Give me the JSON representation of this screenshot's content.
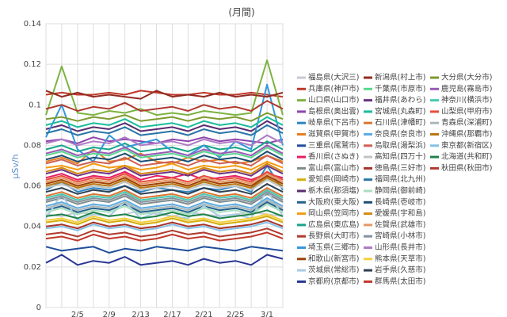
{
  "chart_data": {
    "type": "line",
    "title": "(月間)",
    "y_label": "μSv/h",
    "categories": [
      null,
      null,
      "2/5",
      null,
      "2/9",
      null,
      "2/13",
      null,
      "2/17",
      null,
      "2/21",
      null,
      "2/25",
      null,
      "3/1",
      null
    ],
    "ylim": [
      0,
      0.14
    ],
    "yticks": [
      0,
      0.02,
      0.04,
      0.06,
      0.08,
      0.1,
      0.12,
      0.14
    ],
    "grid": true,
    "series": [
      {
        "name": "福島県(大沢三)",
        "color": "#c8c8d8",
        "values": [
          0.046,
          0.045,
          0.047,
          0.046,
          0.045,
          0.046,
          0.048,
          0.046,
          0.045,
          0.047,
          0.046,
          0.045,
          0.046,
          0.047,
          0.046,
          0.045
        ]
      },
      {
        "name": "兵庫県(神戸市)",
        "color": "#c0392b",
        "values": [
          0.105,
          0.106,
          0.105,
          0.105,
          0.106,
          0.105,
          0.107,
          0.106,
          0.105,
          0.105,
          0.106,
          0.105,
          0.105,
          0.106,
          0.105,
          0.104
        ]
      },
      {
        "name": "山口県(山口市)",
        "color": "#7cb342",
        "values": [
          0.095,
          0.119,
          0.096,
          0.095,
          0.097,
          0.096,
          0.098,
          0.095,
          0.096,
          0.095,
          0.097,
          0.096,
          0.095,
          0.096,
          0.122,
          0.095
        ]
      },
      {
        "name": "島根県(奥出雲)",
        "color": "#8e44ad",
        "values": [
          0.082,
          0.083,
          0.081,
          0.084,
          0.082,
          0.083,
          0.082,
          0.081,
          0.083,
          0.082,
          0.084,
          0.082,
          0.083,
          0.082,
          0.081,
          0.083
        ]
      },
      {
        "name": "岐阜県(下呂市)",
        "color": "#2e86c1",
        "values": [
          0.058,
          0.062,
          0.057,
          0.059,
          0.058,
          0.06,
          0.057,
          0.059,
          0.058,
          0.057,
          0.059,
          0.058,
          0.06,
          0.057,
          0.07,
          0.058
        ]
      },
      {
        "name": "滋賀県(甲賀市)",
        "color": "#e67e22",
        "values": [
          0.072,
          0.074,
          0.071,
          0.078,
          0.072,
          0.073,
          0.076,
          0.072,
          0.071,
          0.074,
          0.072,
          0.073,
          0.071,
          0.072,
          0.075,
          0.072
        ]
      },
      {
        "name": "三重県(尾鷲市)",
        "color": "#1f4e9c",
        "values": [
          0.03,
          0.028,
          0.029,
          0.03,
          0.027,
          0.029,
          0.028,
          0.03,
          0.029,
          0.028,
          0.03,
          0.029,
          0.028,
          0.03,
          0.029,
          0.028
        ]
      },
      {
        "name": "香川県(さぬき)",
        "color": "#e91e63",
        "values": [
          0.064,
          0.066,
          0.063,
          0.065,
          0.064,
          0.067,
          0.063,
          0.065,
          0.064,
          0.066,
          0.063,
          0.064,
          0.065,
          0.063,
          0.066,
          0.064
        ]
      },
      {
        "name": "富山県(富山市)",
        "color": "#7f8c8d",
        "values": [
          0.052,
          0.054,
          0.051,
          0.053,
          0.052,
          0.055,
          0.051,
          0.052,
          0.053,
          0.051,
          0.054,
          0.052,
          0.053,
          0.051,
          0.056,
          0.052
        ]
      },
      {
        "name": "愛知県(岡崎市)",
        "color": "#d4ac0d",
        "values": [
          0.042,
          0.043,
          0.041,
          0.044,
          0.042,
          0.043,
          0.041,
          0.042,
          0.044,
          0.042,
          0.043,
          0.041,
          0.042,
          0.043,
          0.045,
          0.042
        ]
      },
      {
        "name": "栃木県(那須塩)",
        "color": "#5b2c6f",
        "values": [
          0.088,
          0.09,
          0.087,
          0.089,
          0.088,
          0.091,
          0.087,
          0.088,
          0.089,
          0.087,
          0.09,
          0.088,
          0.089,
          0.087,
          0.092,
          0.088
        ]
      },
      {
        "name": "大阪府(東大阪)",
        "color": "#21618c",
        "values": [
          0.048,
          0.05,
          0.047,
          0.049,
          0.048,
          0.051,
          0.047,
          0.048,
          0.049,
          0.047,
          0.05,
          0.048,
          0.049,
          0.047,
          0.052,
          0.048
        ]
      },
      {
        "name": "岡山県(笠岡市)",
        "color": "#f39c12",
        "values": [
          0.069,
          0.07,
          0.068,
          0.071,
          0.069,
          0.07,
          0.068,
          0.069,
          0.071,
          0.068,
          0.07,
          0.069,
          0.07,
          0.068,
          0.072,
          0.069
        ]
      },
      {
        "name": "広島県(東広島)",
        "color": "#17a589",
        "values": [
          0.078,
          0.08,
          0.077,
          0.079,
          0.078,
          0.081,
          0.077,
          0.078,
          0.079,
          0.077,
          0.08,
          0.078,
          0.079,
          0.077,
          0.082,
          0.078
        ]
      },
      {
        "name": "長野県(大町市)",
        "color": "#b03a2e",
        "values": [
          0.036,
          0.037,
          0.035,
          0.038,
          0.036,
          0.037,
          0.035,
          0.036,
          0.038,
          0.036,
          0.037,
          0.035,
          0.036,
          0.037,
          0.039,
          0.036
        ]
      },
      {
        "name": "埼玉県(三郷市)",
        "color": "#3498db",
        "values": [
          0.084,
          0.1,
          0.078,
          0.072,
          0.085,
          0.079,
          0.081,
          0.083,
          0.077,
          0.075,
          0.08,
          0.074,
          0.082,
          0.078,
          0.11,
          0.08
        ]
      },
      {
        "name": "和歌山(新宮市)",
        "color": "#a04000",
        "values": [
          0.061,
          0.063,
          0.06,
          0.062,
          0.061,
          0.064,
          0.06,
          0.061,
          0.062,
          0.06,
          0.063,
          0.061,
          0.062,
          0.06,
          0.065,
          0.061
        ]
      },
      {
        "name": "茨城県(常総市)",
        "color": "#a9cce3",
        "values": [
          0.044,
          0.056,
          0.043,
          0.046,
          0.045,
          0.052,
          0.044,
          0.047,
          0.045,
          0.044,
          0.05,
          0.045,
          0.046,
          0.044,
          0.058,
          0.045
        ]
      },
      {
        "name": "京都府(京都市)",
        "color": "#283593",
        "values": [
          0.022,
          0.026,
          0.021,
          0.023,
          0.022,
          0.025,
          0.021,
          0.022,
          0.023,
          0.021,
          0.024,
          0.022,
          0.023,
          0.021,
          0.026,
          0.024
        ]
      },
      {
        "name": "新潟県(村上市)",
        "color": "#922b21",
        "values": [
          0.107,
          0.104,
          0.106,
          0.104,
          0.105,
          0.104,
          0.103,
          0.107,
          0.104,
          0.105,
          0.104,
          0.106,
          0.104,
          0.105,
          0.104,
          0.106
        ]
      },
      {
        "name": "千葉県(市原市)",
        "color": "#58d68d",
        "values": [
          0.075,
          0.077,
          0.074,
          0.076,
          0.075,
          0.078,
          0.074,
          0.075,
          0.076,
          0.074,
          0.077,
          0.075,
          0.076,
          0.074,
          0.079,
          0.075
        ]
      },
      {
        "name": "福井県(あわら)",
        "color": "#6c3483",
        "values": [
          0.066,
          0.068,
          0.065,
          0.067,
          0.066,
          0.069,
          0.065,
          0.066,
          0.067,
          0.065,
          0.068,
          0.066,
          0.067,
          0.065,
          0.07,
          0.066
        ]
      },
      {
        "name": "宮城県(丸森町)",
        "color": "#1abc9c",
        "values": [
          0.09,
          0.092,
          0.089,
          0.091,
          0.09,
          0.093,
          0.089,
          0.09,
          0.091,
          0.089,
          0.092,
          0.09,
          0.091,
          0.089,
          0.094,
          0.09
        ]
      },
      {
        "name": "石川県(津幡町)",
        "color": "#dc7633",
        "values": [
          0.055,
          0.057,
          0.054,
          0.056,
          0.055,
          0.058,
          0.054,
          0.055,
          0.056,
          0.054,
          0.057,
          0.055,
          0.056,
          0.054,
          0.059,
          0.055
        ]
      },
      {
        "name": "奈良県(奈良市)",
        "color": "#5dade2",
        "values": [
          0.05,
          0.052,
          0.049,
          0.051,
          0.05,
          0.053,
          0.049,
          0.05,
          0.051,
          0.049,
          0.052,
          0.05,
          0.051,
          0.049,
          0.054,
          0.05
        ]
      },
      {
        "name": "鳥取県(湯梨浜)",
        "color": "#cd6155",
        "values": [
          0.071,
          0.073,
          0.07,
          0.072,
          0.071,
          0.074,
          0.07,
          0.071,
          0.072,
          0.07,
          0.073,
          0.071,
          0.072,
          0.07,
          0.075,
          0.071
        ]
      },
      {
        "name": "高知県(四万十)",
        "color": "#bdc3c7",
        "values": [
          0.059,
          0.061,
          0.058,
          0.06,
          0.059,
          0.062,
          0.058,
          0.059,
          0.06,
          0.058,
          0.061,
          0.059,
          0.06,
          0.058,
          0.063,
          0.059
        ]
      },
      {
        "name": "徳島県(三好市)",
        "color": "#a93226",
        "values": [
          0.04,
          0.041,
          0.039,
          0.042,
          0.04,
          0.041,
          0.039,
          0.04,
          0.042,
          0.04,
          0.041,
          0.039,
          0.04,
          0.041,
          0.043,
          0.04
        ]
      },
      {
        "name": "福岡県(北九州)",
        "color": "#2874a6",
        "values": [
          0.086,
          0.088,
          0.085,
          0.087,
          0.086,
          0.089,
          0.085,
          0.086,
          0.087,
          0.085,
          0.088,
          0.086,
          0.087,
          0.085,
          0.09,
          0.086
        ]
      },
      {
        "name": "静岡県(御前崎)",
        "color": "#a9dfbf",
        "values": [
          0.047,
          0.049,
          0.046,
          0.048,
          0.047,
          0.05,
          0.046,
          0.047,
          0.048,
          0.046,
          0.049,
          0.047,
          0.048,
          0.046,
          0.051,
          0.047
        ]
      },
      {
        "name": "長崎県(壱岐市)",
        "color": "#1b4f72",
        "values": [
          0.073,
          0.075,
          0.072,
          0.074,
          0.073,
          0.076,
          0.072,
          0.073,
          0.074,
          0.072,
          0.075,
          0.073,
          0.074,
          0.072,
          0.077,
          0.073
        ]
      },
      {
        "name": "愛媛県(宇和島)",
        "color": "#d68910",
        "values": [
          0.067,
          0.069,
          0.066,
          0.068,
          0.067,
          0.07,
          0.066,
          0.067,
          0.068,
          0.066,
          0.069,
          0.067,
          0.068,
          0.066,
          0.071,
          0.067
        ]
      },
      {
        "name": "佐賀県(武雄市)",
        "color": "#e59866",
        "values": [
          0.062,
          0.064,
          0.061,
          0.063,
          0.062,
          0.065,
          0.061,
          0.062,
          0.063,
          0.061,
          0.064,
          0.062,
          0.063,
          0.061,
          0.066,
          0.062
        ]
      },
      {
        "name": "宮崎県(小林市)",
        "color": "#85929e",
        "values": [
          0.053,
          0.055,
          0.052,
          0.054,
          0.053,
          0.056,
          0.052,
          0.053,
          0.054,
          0.052,
          0.055,
          0.053,
          0.054,
          0.052,
          0.057,
          0.053
        ]
      },
      {
        "name": "山形県(長井市)",
        "color": "#af7ac5",
        "values": [
          0.081,
          0.083,
          0.08,
          0.082,
          0.081,
          0.084,
          0.08,
          0.081,
          0.082,
          0.08,
          0.083,
          0.081,
          0.082,
          0.08,
          0.085,
          0.081
        ]
      },
      {
        "name": "熊本県(天草市)",
        "color": "#f4d03f",
        "values": [
          0.043,
          0.044,
          0.042,
          0.045,
          0.043,
          0.044,
          0.042,
          0.043,
          0.045,
          0.043,
          0.044,
          0.042,
          0.043,
          0.044,
          0.046,
          0.043
        ]
      },
      {
        "name": "岩手県(久慈市)",
        "color": "#2e4053",
        "values": [
          0.057,
          0.059,
          0.056,
          0.058,
          0.057,
          0.06,
          0.056,
          0.057,
          0.058,
          0.056,
          0.059,
          0.057,
          0.058,
          0.056,
          0.061,
          0.057
        ]
      },
      {
        "name": "群馬県(太田市)",
        "color": "#c0392b",
        "values": [
          0.034,
          0.035,
          0.033,
          0.036,
          0.034,
          0.035,
          0.033,
          0.034,
          0.036,
          0.034,
          0.035,
          0.033,
          0.034,
          0.035,
          0.037,
          0.034
        ]
      },
      {
        "name": "大分県(大分市)",
        "color": "#7d9b2f",
        "values": [
          0.093,
          0.094,
          0.092,
          0.094,
          0.093,
          0.095,
          0.092,
          0.093,
          0.094,
          0.092,
          0.094,
          0.093,
          0.094,
          0.092,
          0.096,
          0.093
        ]
      },
      {
        "name": "鹿児島(霧島市)",
        "color": "#9b59b6",
        "values": [
          0.076,
          0.078,
          0.075,
          0.077,
          0.076,
          0.079,
          0.075,
          0.076,
          0.077,
          0.075,
          0.078,
          0.076,
          0.077,
          0.075,
          0.08,
          0.076
        ]
      },
      {
        "name": "神奈川(横浜市)",
        "color": "#48c9b0",
        "values": [
          0.054,
          0.056,
          0.053,
          0.055,
          0.054,
          0.057,
          0.053,
          0.054,
          0.055,
          0.053,
          0.056,
          0.054,
          0.055,
          0.053,
          0.058,
          0.054
        ]
      },
      {
        "name": "山梨県(甲府市)",
        "color": "#e74c3c",
        "values": [
          0.063,
          0.065,
          0.062,
          0.064,
          0.063,
          0.066,
          0.062,
          0.063,
          0.064,
          0.062,
          0.065,
          0.063,
          0.064,
          0.062,
          0.067,
          0.063
        ]
      },
      {
        "name": "青森県(深浦町)",
        "color": "#aab7b8",
        "values": [
          0.049,
          0.051,
          0.048,
          0.05,
          0.049,
          0.052,
          0.048,
          0.049,
          0.05,
          0.048,
          0.051,
          0.049,
          0.05,
          0.048,
          0.053,
          0.049
        ]
      },
      {
        "name": "沖縄県(那覇市)",
        "color": "#b9770e",
        "values": [
          0.06,
          0.062,
          0.059,
          0.061,
          0.06,
          0.063,
          0.059,
          0.06,
          0.061,
          0.059,
          0.062,
          0.06,
          0.061,
          0.059,
          0.064,
          0.06
        ]
      },
      {
        "name": "東京都(新宿区)",
        "color": "#85c1e9",
        "values": [
          0.039,
          0.04,
          0.038,
          0.041,
          0.039,
          0.04,
          0.038,
          0.039,
          0.041,
          0.039,
          0.04,
          0.038,
          0.039,
          0.04,
          0.042,
          0.039
        ]
      },
      {
        "name": "北海道(共和町)",
        "color": "#1e8449",
        "values": [
          0.045,
          0.046,
          0.044,
          0.047,
          0.045,
          0.046,
          0.044,
          0.045,
          0.047,
          0.045,
          0.046,
          0.044,
          0.045,
          0.046,
          0.048,
          0.045
        ]
      },
      {
        "name": "秋田県(秋田市)",
        "color": "#b03a2e",
        "values": [
          0.098,
          0.1,
          0.097,
          0.099,
          0.098,
          0.101,
          0.097,
          0.098,
          0.099,
          0.097,
          0.1,
          0.098,
          0.099,
          0.097,
          0.102,
          0.098
        ]
      }
    ]
  }
}
